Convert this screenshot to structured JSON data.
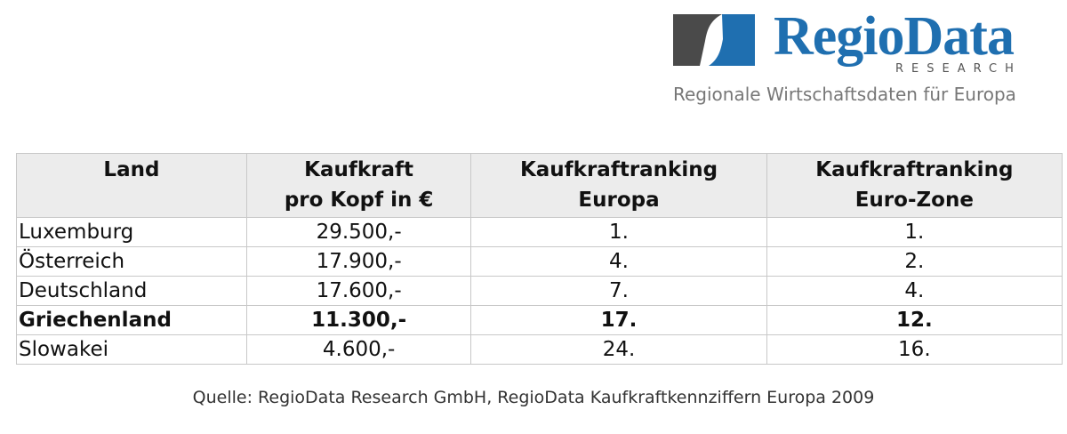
{
  "logo": {
    "name": "RegioData",
    "sub": "RESEARCH",
    "tagline": "Regionale Wirtschaftsdaten für Europa"
  },
  "table": {
    "header": [
      [
        "Land"
      ],
      [
        "Kaufkraft",
        "pro Kopf in €"
      ],
      [
        "Kaufkraftranking",
        "Europa"
      ],
      [
        "Kaufkraftranking",
        "Euro-Zone"
      ]
    ],
    "rows": [
      [
        "Luxemburg",
        "29.500,-",
        "1.",
        "1."
      ],
      [
        "Österreich",
        "17.900,-",
        "4.",
        "2."
      ],
      [
        "Deutschland",
        "17.600,-",
        "7.",
        "4."
      ],
      [
        "Griechenland",
        "11.300,-",
        "17.",
        "12."
      ],
      [
        "Slowakei",
        "4.600,-",
        "24.",
        "16."
      ]
    ],
    "bold_rows": [
      3
    ]
  },
  "source": "Quelle: RegioData Research GmbH, RegioData Kaufkraftkennziffern Europa 2009"
}
